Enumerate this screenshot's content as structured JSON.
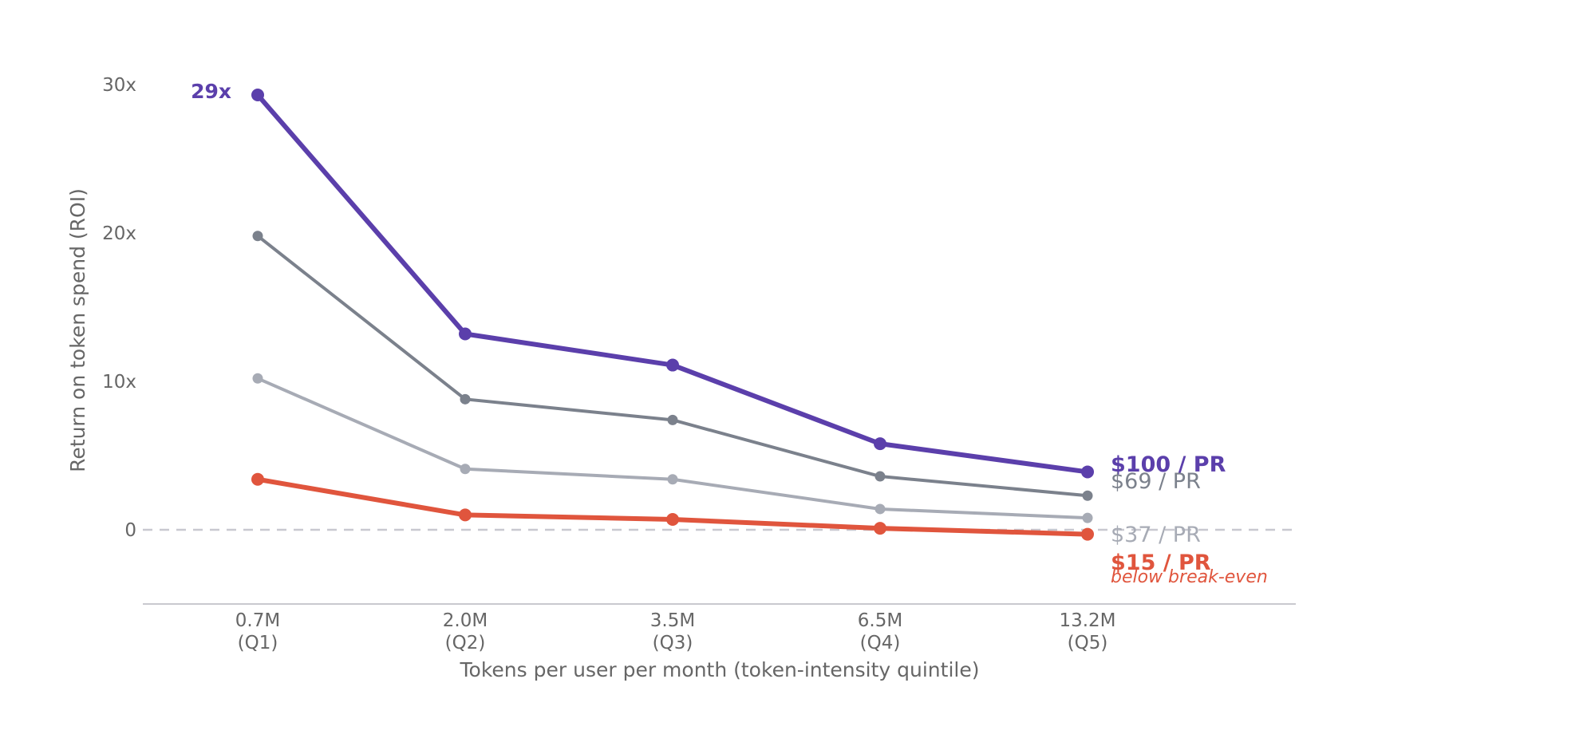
{
  "chart_data": {
    "type": "line",
    "ylabel": "Return on token spend (ROI)",
    "xlabel": "Tokens per user per month (token-intensity quintile)",
    "categories": [
      [
        "0.7M",
        "(Q1)"
      ],
      [
        "2.0M",
        "(Q2)"
      ],
      [
        "3.5M",
        "(Q3)"
      ],
      [
        "6.5M",
        "(Q4)"
      ],
      [
        "13.2M",
        "(Q5)"
      ]
    ],
    "ylim": [
      -5,
      31
    ],
    "yticks": [
      {
        "value": 0,
        "label": "0"
      },
      {
        "value": 10,
        "label": "10x"
      },
      {
        "value": 20,
        "label": "20x"
      },
      {
        "value": 30,
        "label": "30x"
      }
    ],
    "grid": false,
    "reference_line": {
      "value": 0,
      "style": "dashed",
      "color": "#c8c8d0"
    },
    "series": [
      {
        "name": "$100 / PR",
        "values": [
          29.3,
          13.2,
          11.1,
          5.8,
          3.9
        ],
        "color": "#5b3fab",
        "width": 6,
        "bold": true
      },
      {
        "name": "$69 / PR",
        "values": [
          19.8,
          8.8,
          7.4,
          3.6,
          2.3
        ],
        "color": "#7b818c",
        "width": 4,
        "bold": false
      },
      {
        "name": "$37 / PR",
        "values": [
          10.2,
          4.1,
          3.4,
          1.4,
          0.8
        ],
        "color": "#a7abb5",
        "width": 4,
        "bold": false
      },
      {
        "name": "$15 / PR",
        "values": [
          3.4,
          1.0,
          0.7,
          0.1,
          -0.3
        ],
        "color": "#e0553d",
        "width": 6,
        "bold": true,
        "note": "below break-even"
      }
    ],
    "annotations": [
      {
        "text": "29x",
        "series": 0,
        "point": 0,
        "color": "#5b3fab"
      }
    ]
  }
}
